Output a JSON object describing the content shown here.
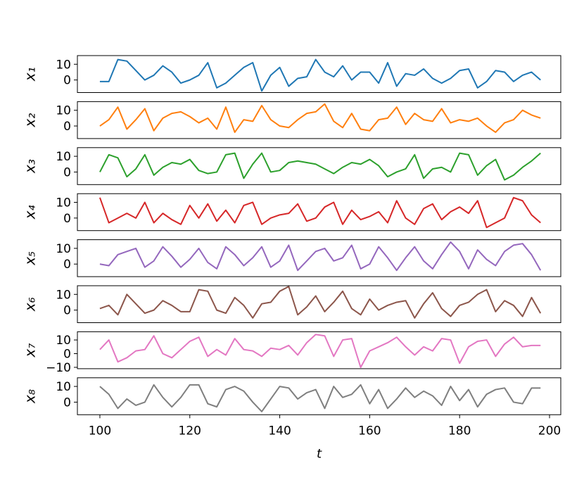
{
  "chart_data": [
    {
      "type": "line",
      "ylabel": "x₁",
      "color": "#1f77b4",
      "xlim": [
        95,
        202.5
      ],
      "ylim": [
        -8,
        15.5
      ],
      "yticks": [
        0,
        10
      ],
      "x": [
        100,
        102,
        104,
        106,
        108,
        110,
        112,
        114,
        116,
        118,
        120,
        122,
        124,
        126,
        128,
        130,
        132,
        134,
        136,
        138,
        140,
        142,
        144,
        146,
        148,
        150,
        152,
        154,
        156,
        158,
        160,
        162,
        164,
        166,
        168,
        170,
        172,
        174,
        176,
        178,
        180,
        182,
        184,
        186,
        188,
        190,
        192,
        194,
        196,
        198
      ],
      "values": [
        -1,
        -1,
        13,
        12,
        6,
        0,
        3,
        9,
        5,
        -2,
        0,
        3,
        11,
        -5,
        -2,
        3,
        8,
        11,
        -7,
        3,
        8,
        -4,
        1,
        2,
        13,
        5,
        2,
        9,
        0,
        5,
        5,
        -2,
        11,
        -4,
        4,
        3,
        7,
        1,
        -2,
        1,
        6,
        7,
        -5,
        -1,
        6,
        5,
        -1,
        3,
        5,
        0
      ]
    },
    {
      "type": "line",
      "ylabel": "x₂",
      "color": "#ff7f0e",
      "xlim": [
        95,
        202.5
      ],
      "ylim": [
        -8,
        15.5
      ],
      "yticks": [
        0,
        10
      ],
      "x": [
        100,
        102,
        104,
        106,
        108,
        110,
        112,
        114,
        116,
        118,
        120,
        122,
        124,
        126,
        128,
        130,
        132,
        134,
        136,
        138,
        140,
        142,
        144,
        146,
        148,
        150,
        152,
        154,
        156,
        158,
        160,
        162,
        164,
        166,
        168,
        170,
        172,
        174,
        176,
        178,
        180,
        182,
        184,
        186,
        188,
        190,
        192,
        194,
        196,
        198
      ],
      "values": [
        0,
        4,
        12,
        -2,
        4,
        11,
        -3,
        5,
        8,
        9,
        6,
        2,
        5,
        -2,
        12,
        -4,
        4,
        3,
        13,
        4,
        0,
        -1,
        4,
        8,
        9,
        14,
        3,
        -1,
        8,
        -2,
        -3,
        4,
        5,
        12,
        1,
        8,
        4,
        3,
        11,
        2,
        4,
        3,
        5,
        0,
        -4,
        2,
        4,
        10,
        7,
        5
      ]
    },
    {
      "type": "line",
      "ylabel": "x₃",
      "color": "#2ca02c",
      "xlim": [
        95,
        202.5
      ],
      "ylim": [
        -8,
        15.5
      ],
      "yticks": [
        0,
        10
      ],
      "x": [
        100,
        102,
        104,
        106,
        108,
        110,
        112,
        114,
        116,
        118,
        120,
        122,
        124,
        126,
        128,
        130,
        132,
        134,
        136,
        138,
        140,
        142,
        144,
        146,
        148,
        150,
        152,
        154,
        156,
        158,
        160,
        162,
        164,
        166,
        168,
        170,
        172,
        174,
        176,
        178,
        180,
        182,
        184,
        186,
        188,
        190,
        192,
        194,
        196,
        198
      ],
      "values": [
        0,
        11,
        9,
        -3,
        2,
        11,
        -2,
        3,
        6,
        5,
        8,
        1,
        -1,
        0,
        11,
        12,
        -4,
        5,
        12,
        0,
        1,
        6,
        7,
        6,
        5,
        2,
        -1,
        3,
        6,
        5,
        8,
        4,
        -3,
        0,
        2,
        11,
        -4,
        2,
        3,
        0,
        12,
        11,
        -2,
        4,
        8,
        -5,
        -2,
        3,
        7,
        12
      ]
    },
    {
      "type": "line",
      "ylabel": "x₄",
      "color": "#d62728",
      "xlim": [
        95,
        202.5
      ],
      "ylim": [
        -8,
        15.5
      ],
      "yticks": [
        0,
        10
      ],
      "x": [
        100,
        102,
        104,
        106,
        108,
        110,
        112,
        114,
        116,
        118,
        120,
        122,
        124,
        126,
        128,
        130,
        132,
        134,
        136,
        138,
        140,
        142,
        144,
        146,
        148,
        150,
        152,
        154,
        156,
        158,
        160,
        162,
        164,
        166,
        168,
        170,
        172,
        174,
        176,
        178,
        180,
        182,
        184,
        186,
        188,
        190,
        192,
        194,
        196,
        198
      ],
      "values": [
        13,
        -3,
        0,
        3,
        0,
        10,
        -3,
        3,
        -1,
        -4,
        8,
        0,
        9,
        -2,
        5,
        -3,
        8,
        10,
        -4,
        0,
        2,
        3,
        9,
        -2,
        0,
        7,
        10,
        -4,
        5,
        -1,
        1,
        4,
        -3,
        11,
        0,
        -4,
        6,
        9,
        -1,
        4,
        7,
        3,
        11,
        -6,
        -3,
        0,
        13,
        11,
        2,
        -3
      ]
    },
    {
      "type": "line",
      "ylabel": "x₅",
      "color": "#9467bd",
      "xlim": [
        95,
        202.5
      ],
      "ylim": [
        -8,
        15.5
      ],
      "yticks": [
        0,
        10
      ],
      "x": [
        100,
        102,
        104,
        106,
        108,
        110,
        112,
        114,
        116,
        118,
        120,
        122,
        124,
        126,
        128,
        130,
        132,
        134,
        136,
        138,
        140,
        142,
        144,
        146,
        148,
        150,
        152,
        154,
        156,
        158,
        160,
        162,
        164,
        166,
        168,
        170,
        172,
        174,
        176,
        178,
        180,
        182,
        184,
        186,
        188,
        190,
        192,
        194,
        196,
        198
      ],
      "values": [
        0,
        -1,
        6,
        8,
        10,
        -2,
        2,
        11,
        5,
        -2,
        3,
        10,
        1,
        -3,
        11,
        6,
        -1,
        4,
        11,
        -2,
        2,
        12,
        -4,
        2,
        8,
        10,
        2,
        4,
        12,
        -3,
        0,
        11,
        4,
        -4,
        4,
        11,
        2,
        -3,
        6,
        14,
        8,
        -3,
        9,
        3,
        -1,
        8,
        12,
        13,
        6,
        -4
      ]
    },
    {
      "type": "line",
      "ylabel": "x₆",
      "color": "#8c564b",
      "xlim": [
        95,
        202.5
      ],
      "ylim": [
        -8,
        15.5
      ],
      "yticks": [
        0,
        10
      ],
      "x": [
        100,
        102,
        104,
        106,
        108,
        110,
        112,
        114,
        116,
        118,
        120,
        122,
        124,
        126,
        128,
        130,
        132,
        134,
        136,
        138,
        140,
        142,
        144,
        146,
        148,
        150,
        152,
        154,
        156,
        158,
        160,
        162,
        164,
        166,
        168,
        170,
        172,
        174,
        176,
        178,
        180,
        182,
        184,
        186,
        188,
        190,
        192,
        194,
        196,
        198
      ],
      "values": [
        1,
        3,
        -3,
        10,
        4,
        -2,
        0,
        6,
        3,
        -1,
        -1,
        13,
        12,
        0,
        -2,
        8,
        3,
        -5,
        4,
        5,
        12,
        15,
        -3,
        2,
        9,
        -1,
        5,
        12,
        1,
        -3,
        7,
        0,
        3,
        5,
        6,
        -5,
        4,
        11,
        1,
        -4,
        3,
        5,
        10,
        13,
        -1,
        6,
        3,
        -4,
        8,
        -2
      ]
    },
    {
      "type": "line",
      "ylabel": "x₇",
      "color": "#e377c2",
      "xlim": [
        95,
        202.5
      ],
      "ylim": [
        -11,
        16
      ],
      "yticks": [
        {
          "value": -10,
          "label": "−10"
        },
        0,
        10
      ],
      "x": [
        100,
        102,
        104,
        106,
        108,
        110,
        112,
        114,
        116,
        118,
        120,
        122,
        124,
        126,
        128,
        130,
        132,
        134,
        136,
        138,
        140,
        142,
        144,
        146,
        148,
        150,
        152,
        154,
        156,
        158,
        160,
        162,
        164,
        166,
        168,
        170,
        172,
        174,
        176,
        178,
        180,
        182,
        184,
        186,
        188,
        190,
        192,
        194,
        196,
        198
      ],
      "values": [
        3,
        10,
        -6,
        -3,
        2,
        3,
        13,
        0,
        -3,
        3,
        9,
        12,
        -2,
        3,
        -1,
        11,
        3,
        2,
        -2,
        4,
        3,
        6,
        -1,
        8,
        14,
        13,
        -2,
        10,
        11,
        -10,
        2,
        5,
        8,
        12,
        5,
        -1,
        5,
        2,
        11,
        10,
        -7,
        5,
        9,
        10,
        -2,
        7,
        12,
        5,
        6,
        6
      ]
    },
    {
      "type": "line",
      "ylabel": "x₈",
      "color": "#7f7f7f",
      "xlim": [
        95,
        202.5
      ],
      "ylim": [
        -8,
        15.5
      ],
      "yticks": [
        0,
        10
      ],
      "xticks": [
        100,
        120,
        140,
        160,
        180,
        200
      ],
      "xlabel": "t",
      "x": [
        100,
        102,
        104,
        106,
        108,
        110,
        112,
        114,
        116,
        118,
        120,
        122,
        124,
        126,
        128,
        130,
        132,
        134,
        136,
        138,
        140,
        142,
        144,
        146,
        148,
        150,
        152,
        154,
        156,
        158,
        160,
        162,
        164,
        166,
        168,
        170,
        172,
        174,
        176,
        178,
        180,
        182,
        184,
        186,
        188,
        190,
        192,
        194,
        196,
        198
      ],
      "values": [
        10,
        5,
        -4,
        2,
        -2,
        0,
        11,
        3,
        -3,
        3,
        11,
        11,
        -1,
        -3,
        8,
        10,
        7,
        0,
        -6,
        2,
        10,
        9,
        2,
        6,
        8,
        -4,
        10,
        3,
        5,
        11,
        -1,
        8,
        -4,
        2,
        9,
        3,
        7,
        4,
        -2,
        10,
        1,
        8,
        -3,
        5,
        8,
        9,
        0,
        -1,
        9,
        9
      ]
    }
  ]
}
